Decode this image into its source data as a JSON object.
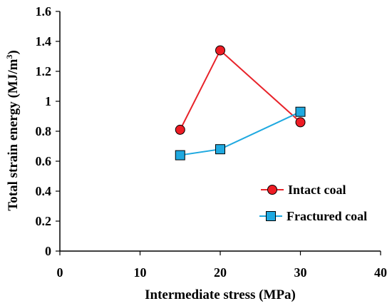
{
  "chart_data": {
    "type": "line",
    "xlabel": "Intermediate stress (MPa)",
    "ylabel": "Total strain energy (MJ/m",
    "ylabel_sup": "3",
    "ylabel_close": ")",
    "xlim": [
      0,
      40
    ],
    "ylim": [
      0,
      1.6
    ],
    "x_ticks": [
      0,
      10,
      20,
      30,
      40
    ],
    "x_tick_labels": [
      "0",
      "10",
      "20",
      "30",
      "40"
    ],
    "y_ticks": [
      0,
      0.2,
      0.4,
      0.6,
      0.8,
      1.0,
      1.2,
      1.4,
      1.6
    ],
    "y_tick_labels": [
      "0",
      "0.2",
      "0.4",
      "0.6",
      "0.8",
      "1",
      "1.2",
      "1.4",
      "1.6"
    ],
    "grid": false,
    "legend_position": "bottom-right",
    "series": [
      {
        "name": "Intact coal",
        "marker": "circle",
        "line_color": "#e8232a",
        "marker_fill": "#ee1c24",
        "x": [
          15,
          20,
          30
        ],
        "y": [
          0.81,
          1.34,
          0.86
        ]
      },
      {
        "name": "Fractured coal",
        "marker": "square",
        "line_color": "#1fa9e0",
        "marker_fill": "#1fa9e0",
        "x": [
          15,
          20,
          30
        ],
        "y": [
          0.64,
          0.68,
          0.93
        ]
      }
    ]
  }
}
